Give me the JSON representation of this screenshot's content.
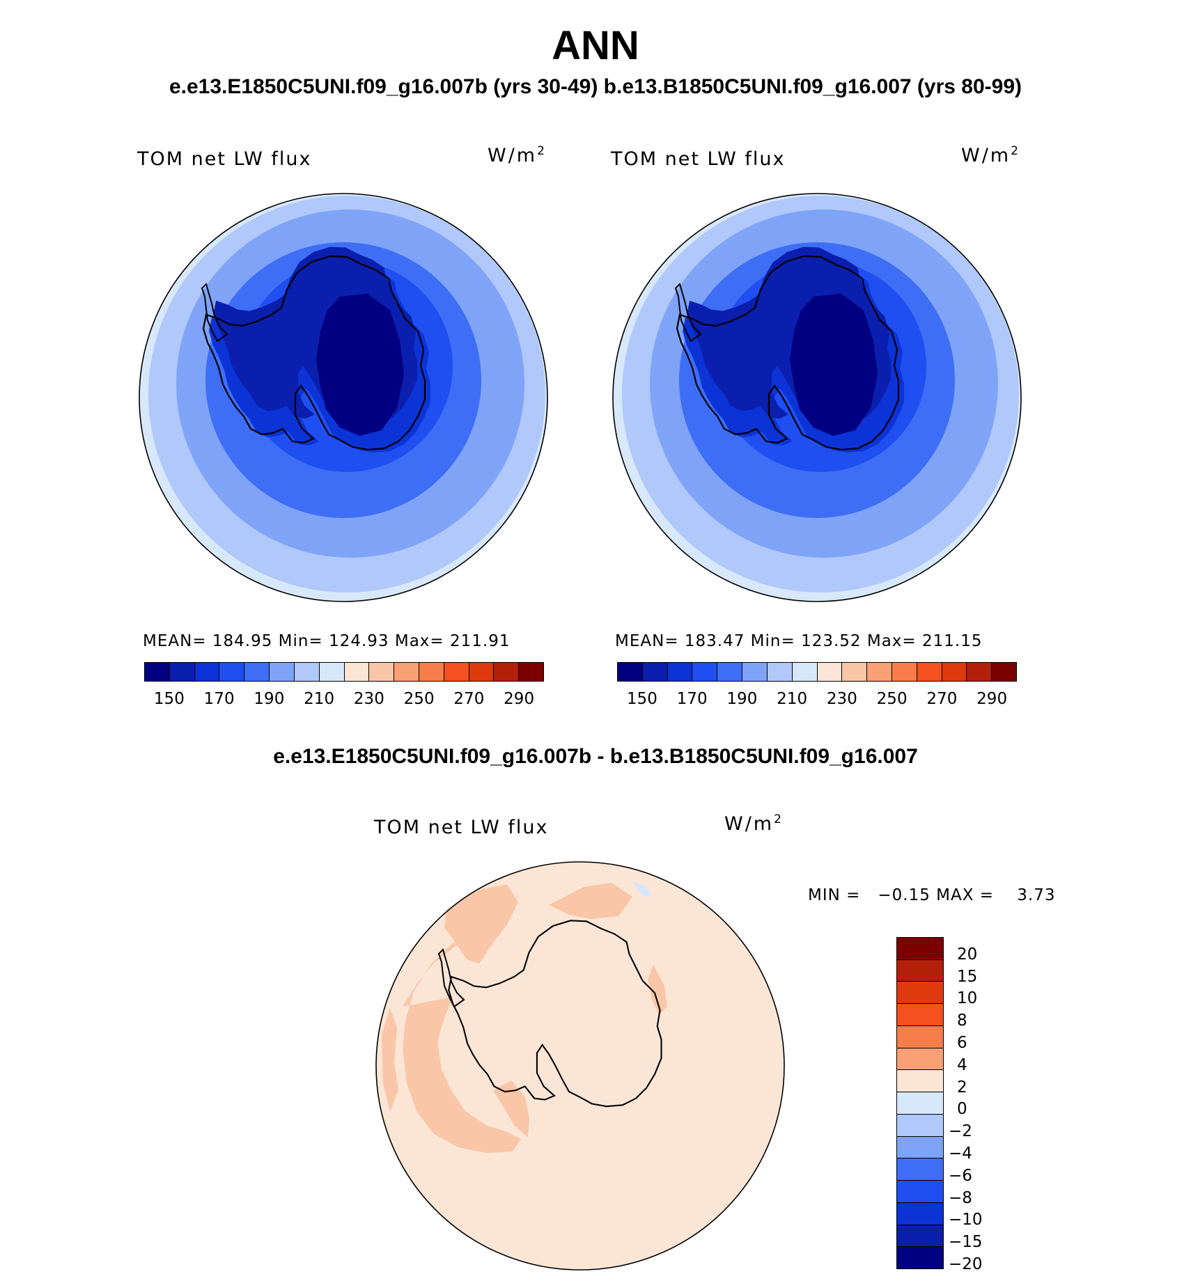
{
  "header": {
    "title": "ANN",
    "subtitle": "e.e13.E1850C5UNI.f09_g16.007b (yrs 30-49)  b.e13.B1850C5UNI.f09_g16.007 (yrs 80-99)"
  },
  "panels": [
    {
      "variable": "TOM net LW flux",
      "units": "W/m",
      "units_exp": "2",
      "stats": "MEAN= 184.95   Min= 124.93   Max= 211.91"
    },
    {
      "variable": "TOM net LW flux",
      "units": "W/m",
      "units_exp": "2",
      "stats": "MEAN= 183.47   Min= 123.52   Max= 211.15"
    }
  ],
  "abs_colorbar": {
    "colors": [
      "#000080",
      "#0a1fad",
      "#0b33d6",
      "#1f4ff0",
      "#3d6ef5",
      "#7fa4f7",
      "#b0c8fa",
      "#d8e8fb",
      "#fbe6d6",
      "#f9c6a8",
      "#f9a074",
      "#f77d4a",
      "#f4511e",
      "#df3a0e",
      "#b2200a",
      "#7d0000"
    ],
    "labels": [
      "150",
      "170",
      "190",
      "210",
      "230",
      "250",
      "270",
      "290"
    ]
  },
  "difference": {
    "title": "e.e13.E1850C5UNI.f09_g16.007b - b.e13.B1850C5UNI.f09_g16.007",
    "variable": "TOM net LW flux",
    "units": "W/m",
    "units_exp": "2",
    "minmax": "MIN =   −0.15 MAX =    3.73"
  },
  "diff_colorbar": {
    "colors": [
      "#7d0000",
      "#b2200a",
      "#df3a0e",
      "#f4511e",
      "#f77d4a",
      "#f9a074",
      "#fbe6d6",
      "#d8e8fb",
      "#b0c8fa",
      "#7fa4f7",
      "#3d6ef5",
      "#1f4ff0",
      "#0b33d6",
      "#0a1fad",
      "#000080"
    ],
    "labels": [
      "20",
      "15",
      "10",
      "8",
      "6",
      "4",
      "2",
      "0",
      "−2",
      "−4",
      "−6",
      "−8",
      "−10",
      "−15",
      "−20"
    ]
  }
}
